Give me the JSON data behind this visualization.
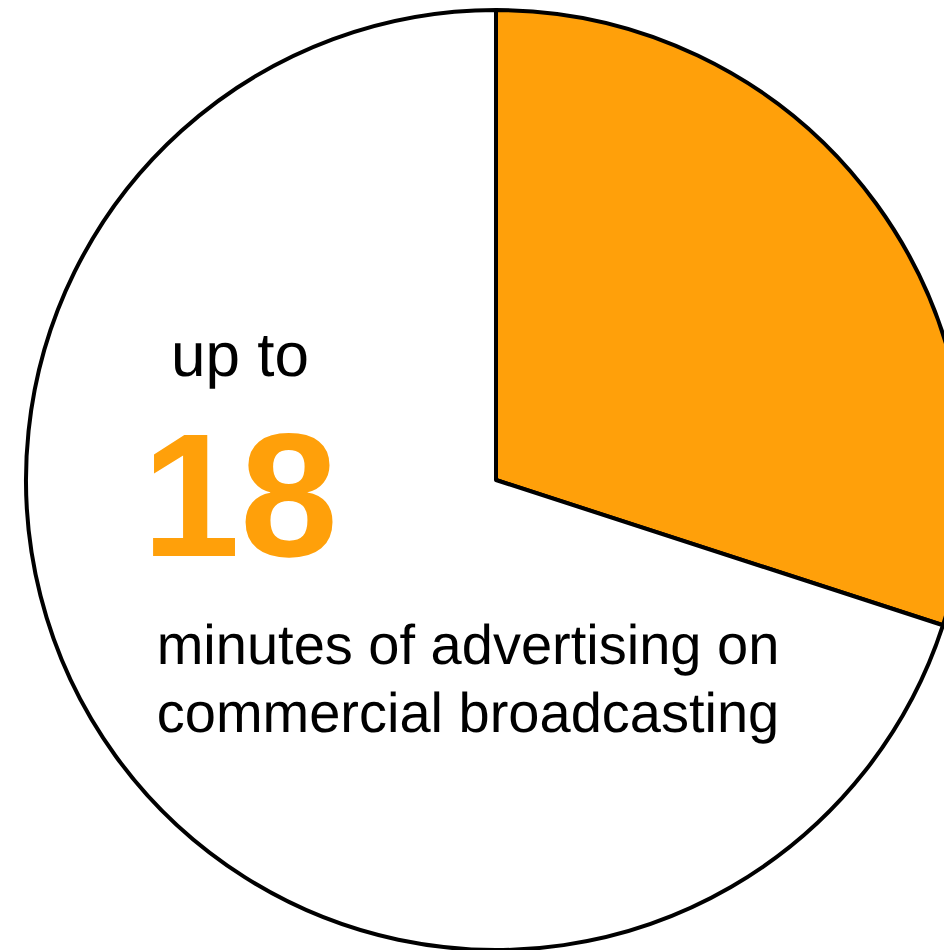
{
  "chart_data": {
    "type": "pie",
    "categories": [
      null,
      null
    ],
    "values": [
      30,
      70
    ],
    "colors": [
      "#ffa00a",
      "#ffffff"
    ],
    "annotations": [
      "up to",
      "18",
      "minutes of advertising on commercial broadcasting"
    ]
  }
}
